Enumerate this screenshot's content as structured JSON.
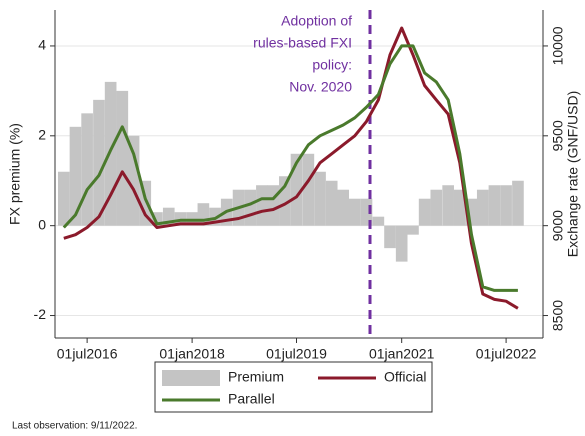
{
  "chart_data": {
    "type": "line",
    "annotation": [
      "Adoption of",
      "rules-based FXI",
      "policy:",
      "Nov. 2020"
    ],
    "ylabel": "FX premium (%)",
    "y2label": "Exchange rate (GNF/USD)",
    "footnote": "Last observation: 9/11/2022.",
    "x": [
      "2016-03-01",
      "2016-05-01",
      "2016-07-01",
      "2016-09-01",
      "2016-11-01",
      "2017-01-01",
      "2017-03-01",
      "2017-05-01",
      "2017-07-01",
      "2017-09-01",
      "2017-11-01",
      "2018-01-01",
      "2018-03-01",
      "2018-05-01",
      "2018-07-01",
      "2018-09-01",
      "2018-11-01",
      "2019-01-01",
      "2019-03-01",
      "2019-05-01",
      "2019-07-01",
      "2019-09-01",
      "2019-11-01",
      "2020-01-01",
      "2020-03-01",
      "2020-05-01",
      "2020-07-01",
      "2020-09-01",
      "2020-11-01",
      "2021-01-01",
      "2021-03-01",
      "2021-05-01",
      "2021-07-01",
      "2021-09-01",
      "2021-11-01",
      "2022-01-01",
      "2022-03-01",
      "2022-05-01",
      "2022-07-01",
      "2022-09-01"
    ],
    "series": [
      {
        "name": "Premium",
        "type": "bar",
        "color": "#c4c4c4",
        "axis": "y",
        "values": [
          1.2,
          2.2,
          2.5,
          2.8,
          3.2,
          3.0,
          2.0,
          1.0,
          0.3,
          0.4,
          0.3,
          0.3,
          0.5,
          0.4,
          0.6,
          0.8,
          0.8,
          0.9,
          0.9,
          1.1,
          1.6,
          1.6,
          1.2,
          1.0,
          0.8,
          0.6,
          0.6,
          0.2,
          -0.5,
          -0.8,
          -0.2,
          0.6,
          0.8,
          0.9,
          0.8,
          0.6,
          0.8,
          0.9,
          0.9,
          1.0
        ]
      },
      {
        "name": "Official",
        "type": "line",
        "color": "#8b1a2b",
        "axis": "y2",
        "values": [
          8930,
          8950,
          8990,
          9050,
          9170,
          9300,
          9200,
          9060,
          8990,
          9000,
          9010,
          9010,
          9010,
          9020,
          9030,
          9040,
          9060,
          9080,
          9090,
          9120,
          9160,
          9250,
          9350,
          9400,
          9450,
          9500,
          9580,
          9700,
          9950,
          10100,
          9950,
          9780,
          9700,
          9620,
          9350,
          8900,
          8620,
          8590,
          8580,
          8540
        ]
      },
      {
        "name": "Parallel",
        "type": "line",
        "color": "#4a7a2c",
        "axis": "y2",
        "values": [
          8990,
          9060,
          9200,
          9280,
          9420,
          9550,
          9400,
          9150,
          9010,
          9020,
          9030,
          9030,
          9030,
          9040,
          9080,
          9100,
          9120,
          9150,
          9150,
          9220,
          9350,
          9450,
          9500,
          9530,
          9560,
          9600,
          9660,
          9730,
          9900,
          10000,
          10000,
          9850,
          9800,
          9700,
          9400,
          8950,
          8660,
          8640,
          8640,
          8640
        ]
      }
    ],
    "xlim": [
      "2016-01-15",
      "2023-01-10"
    ],
    "xticks": [
      {
        "value": "2016-07-01",
        "label": "01jul2016"
      },
      {
        "value": "2018-01-01",
        "label": "01jan2018"
      },
      {
        "value": "2019-07-01",
        "label": "01jul2019"
      },
      {
        "value": "2021-01-01",
        "label": "01jan2021"
      },
      {
        "value": "2022-07-01",
        "label": "01jul2022"
      }
    ],
    "ylim": [
      -2.5,
      4.8
    ],
    "yticks": [
      -2,
      0,
      2,
      4
    ],
    "y2lim": [
      8375,
      10200
    ],
    "y2ticks": [
      8500,
      9000,
      9500,
      10000
    ]
  }
}
